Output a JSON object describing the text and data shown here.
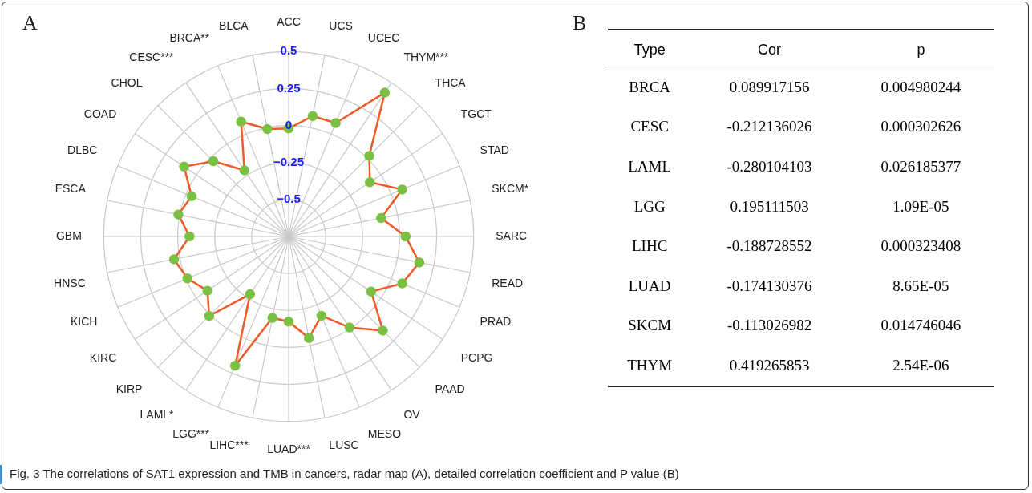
{
  "chart_data": [
    {
      "type": "radar",
      "categories": [
        "ACC",
        "UCS",
        "UCEC",
        "THYM***",
        "THCA",
        "TGCT",
        "STAD",
        "SKCM*",
        "SARC",
        "READ",
        "PRAD",
        "PCPG",
        "PAAD",
        "OV",
        "MESO",
        "LUSC",
        "LUAD***",
        "LIHC***",
        "LGG***",
        "LAML*",
        "KIRP",
        "KIRC",
        "KICH",
        "HNSC",
        "GBM",
        "ESCA",
        "DLBC",
        "COAD",
        "CHOL",
        "CESC***",
        "BRCA**",
        "BLCA"
      ],
      "series": [
        {
          "color": "#f05a28",
          "values": [
            -0.02,
            0.08,
            0.08,
            0.419,
            0.02,
            -0.09,
            0.08,
            -0.113,
            0.04,
            0.15,
            0.08,
            -0.08,
            0.15,
            -0.01,
            -0.17,
            -0.05,
            -0.174,
            -0.189,
            0.195,
            -0.28,
            0.01,
            -0.09,
            -0.01,
            0.04,
            -0.08,
            0.01,
            -0.04,
            0.1,
            -0.03,
            -0.212,
            0.09,
            -0.01
          ]
        }
      ],
      "ylim": [
        -0.75,
        0.5
      ],
      "yticks": [
        -0.5,
        -0.25,
        0,
        0.25,
        0.5
      ],
      "grid": true,
      "marker": "circle",
      "legend": false,
      "annotations": [
        "A",
        "Fig. 3  The correlations of SAT1 expression and TMB in cancers, radar map (A), detailed correlation coefficient and P value (B)"
      ]
    },
    {
      "type": "other",
      "title": "B",
      "categories": [
        "Type",
        "Cor",
        "p"
      ],
      "cell_labels": [
        [
          "BRCA",
          "0.089917156",
          "0.004980244"
        ],
        [
          "CESC",
          "-0.212136026",
          "0.000302626"
        ],
        [
          "LAML",
          "-0.280104103",
          "0.026185377"
        ],
        [
          "LGG",
          "0.195111503",
          "1.09E-05"
        ],
        [
          "LIHC",
          "-0.188728552",
          "0.000323408"
        ],
        [
          "LUAD",
          "-0.174130376",
          "8.65E-05"
        ],
        [
          "SKCM",
          "-0.113026982",
          "0.014746046"
        ],
        [
          "THYM",
          "0.419265853",
          "2.54E-06"
        ]
      ]
    }
  ]
}
